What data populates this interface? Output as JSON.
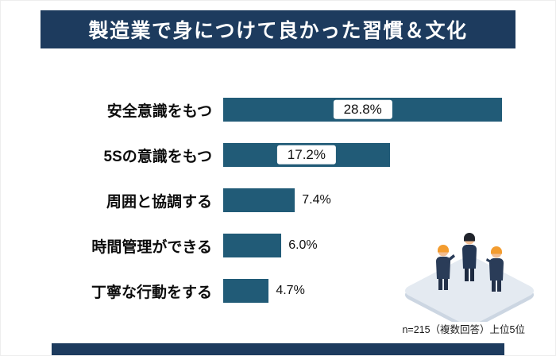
{
  "banner": {
    "title": "製造業で身につけて良かった習慣＆文化"
  },
  "colors": {
    "banner_bg": "#1d3b5e",
    "bar": "#215b77",
    "strip_bg": "#1d3b5e",
    "helmet": "#f39c2f",
    "suit": "#2a3c58"
  },
  "chart_data": {
    "type": "bar",
    "orientation": "horizontal",
    "title": "製造業で身につけて良かった習慣＆文化",
    "categories": [
      "安全意識をもつ",
      "5Sの意識をもつ",
      "周囲と協調する",
      "時間管理ができる",
      "丁寧な行動をする"
    ],
    "values": [
      28.8,
      17.2,
      7.4,
      6.0,
      4.7
    ],
    "value_labels": [
      "28.8%",
      "17.2%",
      "7.4%",
      "6.0%",
      "4.7%"
    ],
    "bar_color": "#215b77",
    "xlim": [
      0,
      30
    ],
    "grid": false,
    "legend": false,
    "label_inside_threshold": 10
  },
  "footnote": "n=215（複数回答）上位5位",
  "illustration": {
    "name": "three-workers-on-platform"
  }
}
